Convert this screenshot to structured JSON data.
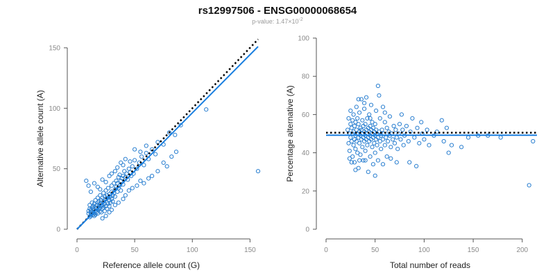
{
  "title": "rs12997506 - ENSG00000068654",
  "subtitle": {
    "prefix": "p-value: 1.47×10",
    "exponent": "-2"
  },
  "colors": {
    "points": "#2a7fd0",
    "fit_line": "#1a7fe0",
    "reference_line": "#000000"
  },
  "chart_data": [
    {
      "type": "scatter",
      "xlabel": "Reference allele count (G)",
      "ylabel": "Alternative allele count (A)",
      "xlim": [
        0,
        160
      ],
      "ylim": [
        0,
        150
      ],
      "xticks": [
        0,
        50,
        100,
        150
      ],
      "yticks": [
        0,
        50,
        100,
        150
      ],
      "grid": false,
      "reference_line": {
        "style": "dotted",
        "x": [
          0,
          157
        ],
        "y": [
          0,
          157
        ]
      },
      "fit_line": {
        "style": "solid",
        "x": [
          0,
          157
        ],
        "y": [
          0,
          151
        ]
      },
      "points": [
        [
          10,
          13
        ],
        [
          10,
          15
        ],
        [
          11,
          10
        ],
        [
          11,
          17
        ],
        [
          11,
          20
        ],
        [
          12,
          12
        ],
        [
          12,
          14
        ],
        [
          12,
          16
        ],
        [
          12,
          11
        ],
        [
          13,
          13
        ],
        [
          13,
          18
        ],
        [
          13,
          22
        ],
        [
          13,
          15
        ],
        [
          14,
          12
        ],
        [
          14,
          17
        ],
        [
          14,
          19
        ],
        [
          14,
          14
        ],
        [
          15,
          11
        ],
        [
          15,
          16
        ],
        [
          15,
          21
        ],
        [
          15,
          13
        ],
        [
          16,
          18
        ],
        [
          16,
          15
        ],
        [
          16,
          24
        ],
        [
          16,
          12
        ],
        [
          17,
          20
        ],
        [
          17,
          17
        ],
        [
          17,
          14
        ],
        [
          18,
          22
        ],
        [
          18,
          16
        ],
        [
          18,
          26
        ],
        [
          18,
          13
        ],
        [
          19,
          19
        ],
        [
          19,
          23
        ],
        [
          19,
          17
        ],
        [
          20,
          21
        ],
        [
          20,
          15
        ],
        [
          20,
          28
        ],
        [
          20,
          18
        ],
        [
          21,
          24
        ],
        [
          21,
          19
        ],
        [
          21,
          14
        ],
        [
          22,
          26
        ],
        [
          22,
          20
        ],
        [
          22,
          17
        ],
        [
          23,
          23
        ],
        [
          23,
          30
        ],
        [
          23,
          18
        ],
        [
          24,
          21
        ],
        [
          24,
          27
        ],
        [
          24,
          15
        ],
        [
          25,
          25
        ],
        [
          25,
          19
        ],
        [
          25,
          32
        ],
        [
          26,
          22
        ],
        [
          26,
          28
        ],
        [
          26,
          17
        ],
        [
          27,
          26
        ],
        [
          27,
          21
        ],
        [
          27,
          34
        ],
        [
          28,
          24
        ],
        [
          28,
          29
        ],
        [
          28,
          19
        ],
        [
          29,
          27
        ],
        [
          29,
          22
        ],
        [
          30,
          31
        ],
        [
          30,
          25
        ],
        [
          30,
          36
        ],
        [
          31,
          28
        ],
        [
          31,
          23
        ],
        [
          32,
          30
        ],
        [
          32,
          38
        ],
        [
          33,
          33
        ],
        [
          33,
          27
        ],
        [
          34,
          35
        ],
        [
          34,
          40
        ],
        [
          35,
          31
        ],
        [
          35,
          38
        ],
        [
          36,
          43
        ],
        [
          36,
          34
        ],
        [
          37,
          36
        ],
        [
          37,
          45
        ],
        [
          38,
          40
        ],
        [
          38,
          32
        ],
        [
          39,
          42
        ],
        [
          40,
          44
        ],
        [
          40,
          37
        ],
        [
          41,
          48
        ],
        [
          42,
          43
        ],
        [
          43,
          46
        ],
        [
          44,
          41
        ],
        [
          45,
          50
        ],
        [
          46,
          47
        ],
        [
          47,
          44
        ],
        [
          48,
          52
        ],
        [
          49,
          46
        ],
        [
          50,
          57
        ],
        [
          52,
          50
        ],
        [
          54,
          55
        ],
        [
          56,
          60
        ],
        [
          58,
          53
        ],
        [
          60,
          63
        ],
        [
          62,
          58
        ],
        [
          65,
          66
        ],
        [
          68,
          62
        ],
        [
          70,
          72
        ],
        [
          75,
          70
        ],
        [
          80,
          80
        ],
        [
          85,
          78
        ],
        [
          90,
          86
        ],
        [
          112,
          99
        ],
        [
          157,
          48
        ],
        [
          8,
          40
        ],
        [
          10,
          36
        ],
        [
          12,
          31
        ],
        [
          15,
          38
        ],
        [
          18,
          35
        ],
        [
          20,
          33
        ],
        [
          22,
          41
        ],
        [
          25,
          39
        ],
        [
          28,
          44
        ],
        [
          30,
          46
        ],
        [
          33,
          48
        ],
        [
          35,
          51
        ],
        [
          38,
          55
        ],
        [
          40,
          53
        ],
        [
          42,
          58
        ],
        [
          46,
          56
        ],
        [
          50,
          66
        ],
        [
          55,
          64
        ],
        [
          60,
          69
        ],
        [
          22,
          9
        ],
        [
          25,
          11
        ],
        [
          28,
          14
        ],
        [
          30,
          16
        ],
        [
          33,
          20
        ],
        [
          36,
          22
        ],
        [
          40,
          25
        ],
        [
          42,
          28
        ],
        [
          45,
          32
        ],
        [
          48,
          34
        ],
        [
          52,
          36
        ],
        [
          55,
          40
        ],
        [
          58,
          38
        ],
        [
          62,
          42
        ],
        [
          65,
          44
        ],
        [
          70,
          48
        ],
        [
          75,
          55
        ],
        [
          78,
          52
        ],
        [
          82,
          60
        ],
        [
          86,
          64
        ]
      ]
    },
    {
      "type": "scatter",
      "xlabel": "Total number of reads",
      "ylabel": "Percentage alternative (A)",
      "xlim": [
        0,
        215
      ],
      "ylim": [
        0,
        100
      ],
      "xticks": [
        0,
        50,
        100,
        150,
        200
      ],
      "yticks": [
        0,
        20,
        40,
        60,
        80,
        100
      ],
      "grid": false,
      "reference_line": {
        "style": "dotted",
        "y": 50.5
      },
      "fit_line": {
        "style": "solid",
        "y": 49.2
      },
      "points": [
        [
          22,
          52
        ],
        [
          23,
          45
        ],
        [
          23,
          58
        ],
        [
          24,
          50
        ],
        [
          24,
          41
        ],
        [
          25,
          55
        ],
        [
          25,
          48
        ],
        [
          25,
          62
        ],
        [
          26,
          46
        ],
        [
          26,
          53
        ],
        [
          27,
          50
        ],
        [
          27,
          38
        ],
        [
          27,
          57
        ],
        [
          28,
          44
        ],
        [
          28,
          51
        ],
        [
          28,
          60
        ],
        [
          29,
          47
        ],
        [
          29,
          54
        ],
        [
          29,
          35
        ],
        [
          30,
          49
        ],
        [
          30,
          56
        ],
        [
          30,
          42
        ],
        [
          31,
          52
        ],
        [
          31,
          46
        ],
        [
          31,
          64
        ],
        [
          32,
          50
        ],
        [
          32,
          40
        ],
        [
          32,
          58
        ],
        [
          33,
          48
        ],
        [
          33,
          55
        ],
        [
          33,
          32
        ],
        [
          34,
          51
        ],
        [
          34,
          45
        ],
        [
          34,
          61
        ],
        [
          35,
          49
        ],
        [
          35,
          53
        ],
        [
          35,
          39
        ],
        [
          36,
          52
        ],
        [
          36,
          47
        ],
        [
          36,
          68
        ],
        [
          37,
          50
        ],
        [
          37,
          43
        ],
        [
          37,
          57
        ],
        [
          38,
          48
        ],
        [
          38,
          54
        ],
        [
          38,
          36
        ],
        [
          39,
          51
        ],
        [
          39,
          46
        ],
        [
          39,
          63
        ],
        [
          40,
          49
        ],
        [
          40,
          55
        ],
        [
          40,
          41
        ],
        [
          41,
          52
        ],
        [
          41,
          47
        ],
        [
          41,
          69
        ],
        [
          42,
          50
        ],
        [
          42,
          44
        ],
        [
          42,
          58
        ],
        [
          43,
          48
        ],
        [
          43,
          53
        ],
        [
          43,
          30
        ],
        [
          44,
          51
        ],
        [
          44,
          46
        ],
        [
          44,
          60
        ],
        [
          45,
          49
        ],
        [
          45,
          54
        ],
        [
          45,
          38
        ],
        [
          46,
          52
        ],
        [
          46,
          47
        ],
        [
          46,
          65
        ],
        [
          47,
          50
        ],
        [
          47,
          43
        ],
        [
          47,
          56
        ],
        [
          48,
          48
        ],
        [
          48,
          53
        ],
        [
          48,
          34
        ],
        [
          49,
          51
        ],
        [
          49,
          45
        ],
        [
          50,
          49
        ],
        [
          50,
          55
        ],
        [
          50,
          40
        ],
        [
          51,
          52
        ],
        [
          51,
          47
        ],
        [
          51,
          62
        ],
        [
          52,
          50
        ],
        [
          52,
          44
        ],
        [
          53,
          48
        ],
        [
          53,
          75
        ],
        [
          53,
          36
        ],
        [
          54,
          51
        ],
        [
          55,
          46
        ],
        [
          55,
          58
        ],
        [
          56,
          49
        ],
        [
          56,
          42
        ],
        [
          57,
          52
        ],
        [
          58,
          47
        ],
        [
          58,
          64
        ],
        [
          59,
          50
        ],
        [
          60,
          44
        ],
        [
          60,
          56
        ],
        [
          61,
          48
        ],
        [
          62,
          53
        ],
        [
          62,
          38
        ],
        [
          63,
          46
        ],
        [
          64,
          51
        ],
        [
          65,
          49
        ],
        [
          65,
          59
        ],
        [
          66,
          43
        ],
        [
          67,
          50
        ],
        [
          68,
          47
        ],
        [
          69,
          54
        ],
        [
          70,
          45
        ],
        [
          71,
          52
        ],
        [
          72,
          48
        ],
        [
          73,
          42
        ],
        [
          74,
          50
        ],
        [
          75,
          55
        ],
        [
          76,
          47
        ],
        [
          77,
          60
        ],
        [
          78,
          52
        ],
        [
          79,
          44
        ],
        [
          80,
          49
        ],
        [
          82,
          54
        ],
        [
          84,
          46
        ],
        [
          85,
          35
        ],
        [
          86,
          51
        ],
        [
          88,
          58
        ],
        [
          90,
          48
        ],
        [
          92,
          33
        ],
        [
          93,
          53
        ],
        [
          95,
          45
        ],
        [
          97,
          56
        ],
        [
          98,
          50
        ],
        [
          100,
          47
        ],
        [
          103,
          52
        ],
        [
          105,
          44
        ],
        [
          110,
          49
        ],
        [
          113,
          51
        ],
        [
          118,
          57
        ],
        [
          120,
          46
        ],
        [
          123,
          53
        ],
        [
          125,
          40
        ],
        [
          128,
          44
        ],
        [
          138,
          43
        ],
        [
          145,
          48
        ],
        [
          155,
          49
        ],
        [
          165,
          49
        ],
        [
          178,
          48
        ],
        [
          207,
          23
        ],
        [
          211,
          46
        ],
        [
          33,
          68
        ],
        [
          39,
          66
        ],
        [
          45,
          58
        ],
        [
          54,
          70
        ],
        [
          60,
          61
        ],
        [
          24,
          37
        ],
        [
          26,
          35
        ],
        [
          30,
          31
        ],
        [
          34,
          36
        ],
        [
          40,
          36
        ],
        [
          50,
          28
        ],
        [
          58,
          34
        ],
        [
          66,
          37
        ],
        [
          72,
          35
        ]
      ]
    }
  ]
}
